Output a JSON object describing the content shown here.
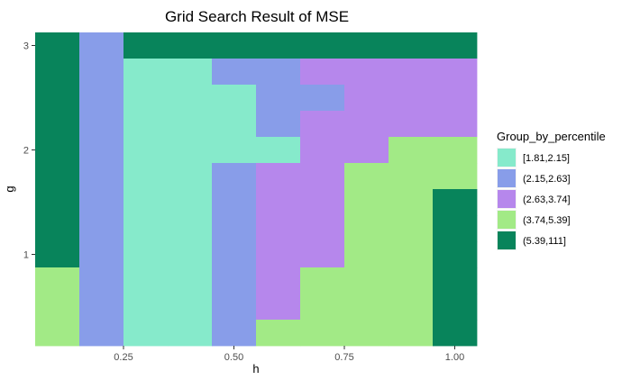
{
  "chart_data": {
    "type": "heatmap",
    "title": "Grid Search Result of MSE",
    "xlabel": "h",
    "ylabel": "g",
    "x_tick_labels": [
      "0.25",
      "0.50",
      "0.75",
      "1.00"
    ],
    "x_tick_values": [
      0.25,
      0.5,
      0.75,
      1.0
    ],
    "y_tick_labels": [
      "1",
      "2",
      "3"
    ],
    "y_tick_values": [
      1,
      2,
      3
    ],
    "x_centers": [
      0.1,
      0.2,
      0.3,
      0.4,
      0.5,
      0.6,
      0.7,
      0.8,
      0.9,
      1.0
    ],
    "y_centers": [
      0.25,
      0.5,
      0.75,
      1.0,
      1.25,
      1.5,
      1.75,
      2.0,
      2.25,
      2.5,
      2.75,
      3.0
    ],
    "xlim": [
      0.05,
      1.05
    ],
    "ylim": [
      0.125,
      3.125
    ],
    "legend_title": "Group_by_percentile",
    "legend_placement": "right",
    "legend": [
      {
        "label": "[1.81,2.15]",
        "color": "#86EACB"
      },
      {
        "label": "(2.15,2.63]",
        "color": "#889DE9"
      },
      {
        "label": "(2.63,3.74]",
        "color": "#B687EC"
      },
      {
        "label": "(3.74,5.39]",
        "color": "#A2EA86"
      },
      {
        "label": "(5.39,111]",
        "color": "#08845B"
      }
    ],
    "grid": true,
    "rows": [
      [
        4,
        1,
        4,
        4,
        4,
        4,
        4,
        4,
        4,
        4
      ],
      [
        4,
        1,
        0,
        0,
        1,
        1,
        2,
        2,
        2,
        2
      ],
      [
        4,
        1,
        0,
        0,
        0,
        1,
        1,
        2,
        2,
        2
      ],
      [
        4,
        1,
        0,
        0,
        0,
        1,
        2,
        2,
        2,
        2
      ],
      [
        4,
        1,
        0,
        0,
        0,
        0,
        2,
        2,
        3,
        3
      ],
      [
        4,
        1,
        0,
        0,
        1,
        2,
        2,
        3,
        3,
        3
      ],
      [
        4,
        1,
        0,
        0,
        1,
        2,
        2,
        3,
        3,
        4
      ],
      [
        4,
        1,
        0,
        0,
        1,
        2,
        2,
        3,
        3,
        4
      ],
      [
        4,
        1,
        0,
        0,
        1,
        2,
        2,
        3,
        3,
        4
      ],
      [
        3,
        1,
        0,
        0,
        1,
        2,
        3,
        3,
        3,
        4
      ],
      [
        3,
        1,
        0,
        0,
        1,
        2,
        3,
        3,
        3,
        4
      ],
      [
        3,
        1,
        0,
        0,
        1,
        3,
        3,
        3,
        3,
        4
      ]
    ]
  }
}
